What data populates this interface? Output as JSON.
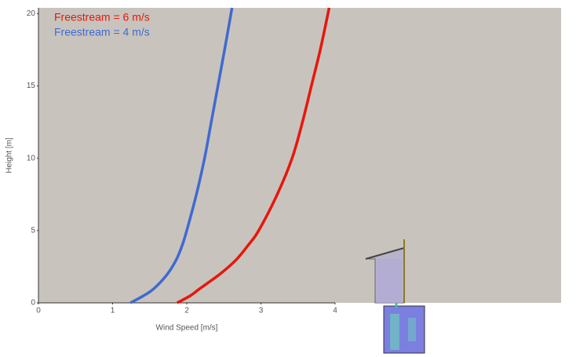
{
  "chart_data": {
    "type": "line",
    "x_label": "Wind Speed [m/s]",
    "y_label": "Height [m]",
    "series": [
      {
        "name": "Freestream = 6 m/s",
        "color": "#e8160c",
        "x": [
          1.87,
          2.05,
          2.18,
          2.45,
          2.67,
          2.83,
          2.97,
          3.22,
          3.42,
          3.56,
          3.68,
          3.8,
          3.92
        ],
        "y": [
          0,
          0.5,
          1,
          2,
          3,
          4,
          5,
          7.5,
          10,
          12.5,
          15,
          17.5,
          20.4
        ]
      },
      {
        "name": "Freestream = 4 m/s",
        "color": "#4169d0",
        "x": [
          1.24,
          1.42,
          1.56,
          1.74,
          1.86,
          1.94,
          2.0,
          2.13,
          2.24,
          2.33,
          2.42,
          2.51,
          2.61
        ],
        "y": [
          0,
          0.5,
          1,
          2,
          3,
          4,
          5,
          7.5,
          10,
          12.5,
          15,
          17.5,
          20.4
        ]
      }
    ],
    "xlim": [
      0,
      4
    ],
    "xticks": [
      0,
      1,
      2,
      3,
      4
    ],
    "ylim": [
      0,
      20.4
    ],
    "yticks": [
      0,
      5,
      10,
      15,
      20
    ],
    "legend": "top-left"
  }
}
